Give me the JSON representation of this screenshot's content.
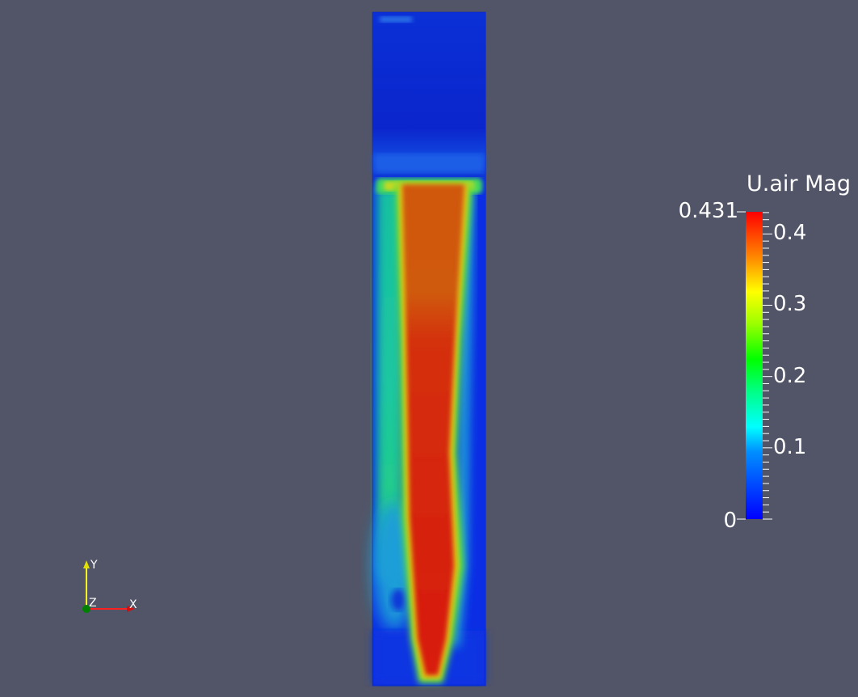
{
  "legend": {
    "title": "U.air Mag",
    "range": [
      0,
      0.431
    ],
    "max_label": "0.431",
    "min_label": "0",
    "ticks": [
      {
        "value": 0.4,
        "label": "0.4"
      },
      {
        "value": 0.3,
        "label": "0.3"
      },
      {
        "value": 0.2,
        "label": "0.2"
      },
      {
        "value": 0.1,
        "label": "0.1"
      }
    ],
    "colormap": [
      "#0000ff",
      "#0080ff",
      "#00ffff",
      "#00ff80",
      "#00ff00",
      "#80ff00",
      "#ffff00",
      "#ff8000",
      "#ff0000"
    ]
  },
  "axes_triad": {
    "x_label": "X",
    "y_label": "Y",
    "z_label": "Z",
    "x_color": "#ff2020",
    "y_color": "#ffff20",
    "z_color": "#008000"
  },
  "colors": {
    "background": "#525567",
    "field_blue": "#0a2be0",
    "field_deep_blue": "#0b22c8",
    "field_cyan": "#10c0c8",
    "field_green": "#2ad27a",
    "field_orange": "#d45a10",
    "field_red": "#d81a08"
  }
}
